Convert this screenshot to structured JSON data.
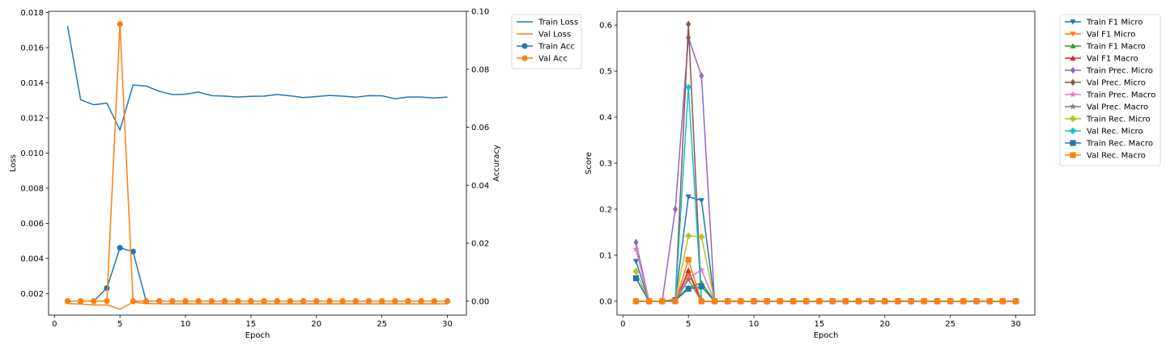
{
  "chart_data": [
    {
      "type": "line",
      "title": "",
      "xlabel": "Epoch",
      "ylabel": "Loss",
      "y2label": "Accuracy",
      "xlim": [
        -0.45,
        31.45
      ],
      "ylim": [
        0.000775,
        0.01807
      ],
      "y2lim": [
        -0.0048,
        0.1
      ],
      "xticks": [
        0,
        5,
        10,
        15,
        20,
        25,
        30
      ],
      "yticks": [
        0.002,
        0.004,
        0.006,
        0.008,
        0.01,
        0.012,
        0.014,
        0.016,
        0.018
      ],
      "ytick_labels": [
        "0.002",
        "0.004",
        "0.006",
        "0.008",
        "0.010",
        "0.012",
        "0.014",
        "0.016",
        "0.018"
      ],
      "y2ticks": [
        0.0,
        0.02,
        0.04,
        0.06,
        0.08,
        0.1
      ],
      "y2tick_labels": [
        "0.00",
        "0.02",
        "0.04",
        "0.06",
        "0.08",
        "0.10"
      ],
      "legend_position": "outside-top-right",
      "x": [
        1,
        2,
        3,
        4,
        5,
        6,
        7,
        8,
        9,
        10,
        11,
        12,
        13,
        14,
        15,
        16,
        17,
        18,
        19,
        20,
        21,
        22,
        23,
        24,
        25,
        26,
        27,
        28,
        29,
        30
      ],
      "series": [
        {
          "name": "Train Loss",
          "axis": "left",
          "color": "#1f77b4",
          "marker": "none",
          "values": [
            0.01723,
            0.01303,
            0.01275,
            0.01284,
            0.01131,
            0.01388,
            0.01381,
            0.01352,
            0.01333,
            0.01335,
            0.01347,
            0.01327,
            0.01324,
            0.01319,
            0.01323,
            0.01324,
            0.01333,
            0.01326,
            0.01316,
            0.01322,
            0.01328,
            0.01324,
            0.01318,
            0.01327,
            0.01326,
            0.01309,
            0.01319,
            0.01319,
            0.01313,
            0.01319
          ]
        },
        {
          "name": "Val Loss",
          "axis": "left",
          "color": "#ff7f0e",
          "marker": "none",
          "values": [
            0.00143,
            0.00141,
            0.00135,
            0.00135,
            0.00111,
            0.00151,
            0.00143,
            0.00142,
            0.00142,
            0.00142,
            0.00142,
            0.00142,
            0.00142,
            0.00142,
            0.00142,
            0.00142,
            0.00142,
            0.00142,
            0.00142,
            0.00142,
            0.00142,
            0.00142,
            0.00142,
            0.00142,
            0.00142,
            0.00142,
            0.00142,
            0.00142,
            0.00142,
            0.00142
          ]
        },
        {
          "name": "Train Acc",
          "axis": "right",
          "color": "#1f77b4",
          "marker": "circle",
          "values": [
            0,
            0,
            0,
            0.0045,
            0.0184,
            0.0171,
            0,
            0,
            0,
            0,
            0,
            0,
            0,
            0,
            0,
            0,
            0,
            0,
            0,
            0,
            0,
            0,
            0,
            0,
            0,
            0,
            0,
            0,
            0,
            0
          ]
        },
        {
          "name": "Val Acc",
          "axis": "right",
          "color": "#ff7f0e",
          "marker": "circle",
          "values": [
            0,
            0,
            0,
            0,
            0.0956,
            0,
            0,
            0,
            0,
            0,
            0,
            0,
            0,
            0,
            0,
            0,
            0,
            0,
            0,
            0,
            0,
            0,
            0,
            0,
            0,
            0,
            0,
            0,
            0,
            0
          ]
        }
      ]
    },
    {
      "type": "line",
      "title": "",
      "xlabel": "Epoch",
      "ylabel": "Score",
      "xlim": [
        -0.45,
        31.45
      ],
      "ylim": [
        -0.03,
        0.63
      ],
      "xticks": [
        0,
        5,
        10,
        15,
        20,
        25,
        30
      ],
      "yticks": [
        0.0,
        0.1,
        0.2,
        0.3,
        0.4,
        0.5,
        0.6
      ],
      "ytick_labels": [
        "0.0",
        "0.1",
        "0.2",
        "0.3",
        "0.4",
        "0.5",
        "0.6"
      ],
      "legend_position": "outside-top-right",
      "x": [
        1,
        2,
        3,
        4,
        5,
        6,
        7,
        8,
        9,
        10,
        11,
        12,
        13,
        14,
        15,
        16,
        17,
        18,
        19,
        20,
        21,
        22,
        23,
        24,
        25,
        26,
        27,
        28,
        29,
        30
      ],
      "series": [
        {
          "name": "Train F1 Micro",
          "color": "#1f77b4",
          "marker": "tri_down",
          "values": [
            0.087,
            0,
            0,
            0.004,
            0.227,
            0.219,
            0,
            0,
            0,
            0,
            0,
            0,
            0,
            0,
            0,
            0,
            0,
            0,
            0,
            0,
            0,
            0,
            0,
            0,
            0,
            0,
            0,
            0,
            0,
            0
          ]
        },
        {
          "name": "Val F1 Micro",
          "color": "#ff7f0e",
          "marker": "tri_down",
          "values": [
            0,
            0,
            0,
            0,
            0.06,
            0,
            0,
            0,
            0,
            0,
            0,
            0,
            0,
            0,
            0,
            0,
            0,
            0,
            0,
            0,
            0,
            0,
            0,
            0,
            0,
            0,
            0,
            0,
            0,
            0
          ]
        },
        {
          "name": "Train F1 Macro",
          "color": "#2ca02c",
          "marker": "tri_up",
          "values": [
            0.05,
            0,
            0,
            0.003,
            0.03,
            0.04,
            0,
            0,
            0,
            0,
            0,
            0,
            0,
            0,
            0,
            0,
            0,
            0,
            0,
            0,
            0,
            0,
            0,
            0,
            0,
            0,
            0,
            0,
            0,
            0
          ]
        },
        {
          "name": "Val F1 Macro",
          "color": "#d62728",
          "marker": "tri_up",
          "values": [
            0,
            0,
            0,
            0,
            0.067,
            0,
            0,
            0,
            0,
            0,
            0,
            0,
            0,
            0,
            0,
            0,
            0,
            0,
            0,
            0,
            0,
            0,
            0,
            0,
            0,
            0,
            0,
            0,
            0,
            0
          ]
        },
        {
          "name": "Train Prec. Micro",
          "color": "#9467bd",
          "marker": "diamond",
          "values": [
            0.128,
            0,
            0,
            0.2,
            0.573,
            0.49,
            0,
            0,
            0,
            0,
            0,
            0,
            0,
            0,
            0,
            0,
            0,
            0,
            0,
            0,
            0,
            0,
            0,
            0,
            0,
            0,
            0,
            0,
            0,
            0
          ]
        },
        {
          "name": "Val Prec. Micro",
          "color": "#8c564b",
          "marker": "diamond",
          "values": [
            0,
            0,
            0,
            0,
            0.602,
            0,
            0,
            0,
            0,
            0,
            0,
            0,
            0,
            0,
            0,
            0,
            0,
            0,
            0,
            0,
            0,
            0,
            0,
            0,
            0,
            0,
            0,
            0,
            0,
            0
          ]
        },
        {
          "name": "Train Prec. Macro",
          "color": "#e377c2",
          "marker": "star",
          "values": [
            0.113,
            0,
            0,
            0.005,
            0.05,
            0.068,
            0,
            0,
            0,
            0,
            0,
            0,
            0,
            0,
            0,
            0,
            0,
            0,
            0,
            0,
            0,
            0,
            0,
            0,
            0,
            0,
            0,
            0,
            0,
            0
          ]
        },
        {
          "name": "Val Prec. Macro",
          "color": "#7f7f7f",
          "marker": "star",
          "values": [
            0,
            0,
            0,
            0,
            0.047,
            0,
            0,
            0,
            0,
            0,
            0,
            0,
            0,
            0,
            0,
            0,
            0,
            0,
            0,
            0,
            0,
            0,
            0,
            0,
            0,
            0,
            0,
            0,
            0,
            0
          ]
        },
        {
          "name": "Train Rec. Micro",
          "color": "#bcbd22",
          "marker": "plus",
          "values": [
            0.065,
            0,
            0,
            0.003,
            0.142,
            0.14,
            0,
            0,
            0,
            0,
            0,
            0,
            0,
            0,
            0,
            0,
            0,
            0,
            0,
            0,
            0,
            0,
            0,
            0,
            0,
            0,
            0,
            0,
            0,
            0
          ]
        },
        {
          "name": "Val Rec. Micro",
          "color": "#17becf",
          "marker": "plus",
          "values": [
            0,
            0,
            0,
            0,
            0.465,
            0,
            0,
            0,
            0,
            0,
            0,
            0,
            0,
            0,
            0,
            0,
            0,
            0,
            0,
            0,
            0,
            0,
            0,
            0,
            0,
            0,
            0,
            0,
            0,
            0
          ]
        },
        {
          "name": "Train Rec. Macro",
          "color": "#1f77b4",
          "marker": "square",
          "values": [
            0.05,
            0,
            0,
            0.002,
            0.027,
            0.032,
            0,
            0,
            0,
            0,
            0,
            0,
            0,
            0,
            0,
            0,
            0,
            0,
            0,
            0,
            0,
            0,
            0,
            0,
            0,
            0,
            0,
            0,
            0,
            0
          ]
        },
        {
          "name": "Val Rec. Macro",
          "color": "#ff7f0e",
          "marker": "square",
          "values": [
            0,
            0,
            0,
            0,
            0.09,
            0,
            0,
            0,
            0,
            0,
            0,
            0,
            0,
            0,
            0,
            0,
            0,
            0,
            0,
            0,
            0,
            0,
            0,
            0,
            0,
            0,
            0,
            0,
            0,
            0
          ]
        }
      ]
    }
  ]
}
